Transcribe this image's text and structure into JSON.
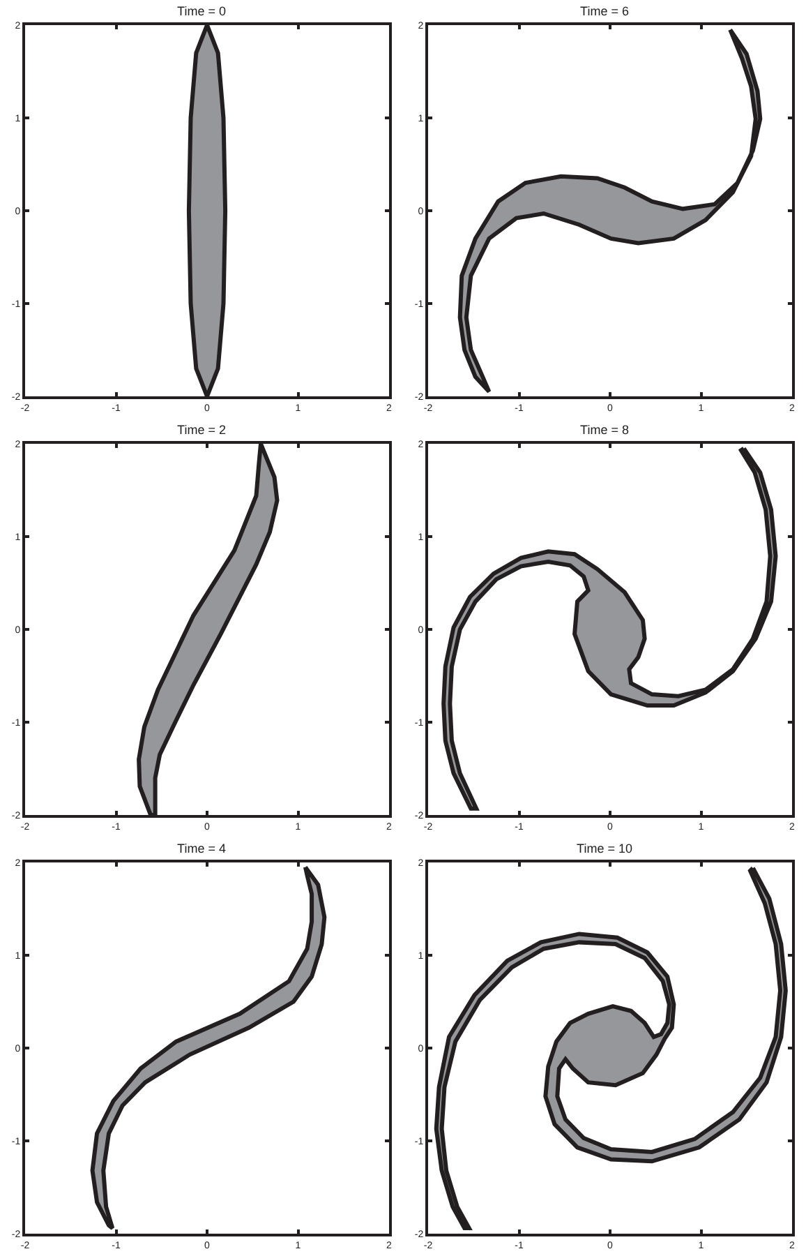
{
  "chart_data": [
    {
      "type": "area",
      "title": "Time = 0",
      "xlim": [
        -2,
        2
      ],
      "ylim": [
        -2,
        2
      ],
      "xticks": [
        -2,
        -1,
        0,
        1,
        2
      ],
      "yticks": [
        -2,
        -1,
        0,
        1,
        2
      ],
      "series": [
        {
          "color": "#96979b",
          "x": [
            0,
            0.12,
            0.18,
            0.2,
            0.18,
            0.12,
            0,
            -0.12,
            -0.18,
            -0.2,
            -0.18,
            -0.12
          ],
          "values": [
            2,
            1.7,
            1,
            0,
            -1,
            -1.7,
            -2,
            -1.7,
            -1,
            0,
            1,
            1.7
          ]
        }
      ]
    },
    {
      "type": "area",
      "title": "Time = 6",
      "xlim": [
        -2,
        2
      ],
      "ylim": [
        -2,
        2
      ],
      "xticks": [
        -2,
        -1,
        0,
        1,
        2
      ],
      "yticks": [
        -2,
        -1,
        0,
        1,
        2
      ],
      "series": [
        {
          "color": "#96979b",
          "x": [
            1.32,
            1.5,
            1.62,
            1.65,
            1.57,
            1.4,
            1.15,
            0.8,
            0.46,
            0.16,
            -0.14,
            -0.54,
            -0.93,
            -1.23,
            -1.48,
            -1.63,
            -1.65,
            -1.6,
            -1.48,
            -1.33,
            -1.4,
            -1.53,
            -1.58,
            -1.53,
            -1.33,
            -1.03,
            -0.73,
            -0.34,
            0.01,
            0.31,
            0.7,
            1.05,
            1.35,
            1.55,
            1.6,
            1.55,
            1.45
          ],
          "values": [
            1.95,
            1.69,
            1.29,
            0.99,
            0.65,
            0.3,
            0.07,
            0.02,
            0.1,
            0.25,
            0.35,
            0.37,
            0.3,
            0.1,
            -0.3,
            -0.7,
            -1.15,
            -1.5,
            -1.79,
            -1.95,
            -1.79,
            -1.5,
            -1.15,
            -0.7,
            -0.3,
            -0.08,
            -0.03,
            -0.15,
            -0.3,
            -0.35,
            -0.3,
            -0.1,
            0.2,
            0.59,
            0.99,
            1.34,
            1.64
          ]
        }
      ]
    },
    {
      "type": "area",
      "title": "Time = 2",
      "xlim": [
        -2,
        2
      ],
      "ylim": [
        -2,
        2
      ],
      "xticks": [
        -2,
        -1,
        0,
        1,
        2
      ],
      "yticks": [
        -2,
        -1,
        0,
        1,
        2
      ],
      "series": [
        {
          "color": "#96979b",
          "x": [
            0.59,
            0.74,
            0.77,
            0.69,
            0.54,
            0.15,
            -0.15,
            -0.35,
            -0.52,
            -0.57,
            -0.57,
            -0.62,
            -0.74,
            -0.75,
            -0.69,
            -0.54,
            -0.15,
            0.3,
            0.54,
            0.57
          ],
          "values": [
            2,
            1.64,
            1.39,
            1.05,
            0.7,
            -0.05,
            -0.6,
            -1,
            -1.35,
            -1.6,
            -2,
            -2,
            -1.69,
            -1.4,
            -1.05,
            -0.65,
            0.15,
            0.85,
            1.44,
            1.79
          ]
        }
      ]
    },
    {
      "type": "area",
      "title": "Time = 8",
      "xlim": [
        -2,
        2
      ],
      "ylim": [
        -2,
        2
      ],
      "xticks": [
        -2,
        -1,
        0,
        1,
        2
      ],
      "yticks": [
        -2,
        -1,
        0,
        1,
        2
      ],
      "series": [
        {
          "color": "#96979b",
          "x": [
            1.47,
            1.65,
            1.77,
            1.82,
            1.77,
            1.6,
            1.35,
            1.05,
            0.7,
            0.41,
            0.01,
            -0.24,
            -0.39,
            -0.36,
            -0.24,
            -0.29,
            -0.44,
            -0.68,
            -0.98,
            -1.25,
            -1.48,
            -1.65,
            -1.74,
            -1.76,
            -1.74,
            -1.65,
            -1.47,
            -1.53,
            -1.72,
            -1.81,
            -1.83,
            -1.81,
            -1.72,
            -1.54,
            -1.28,
            -0.98,
            -0.68,
            -0.39,
            -0.14,
            0.16,
            0.36,
            0.38,
            0.31,
            0.21,
            0.23,
            0.46,
            0.75,
            1.05,
            1.35,
            1.57,
            1.72,
            1.76,
            1.71,
            1.59,
            1.44
          ],
          "values": [
            1.95,
            1.69,
            1.29,
            0.79,
            0.3,
            -0.1,
            -0.45,
            -0.68,
            -0.82,
            -0.82,
            -0.7,
            -0.45,
            -0.05,
            0.3,
            0.42,
            0.57,
            0.69,
            0.73,
            0.68,
            0.54,
            0.3,
            0,
            -0.4,
            -0.8,
            -1.2,
            -1.55,
            -1.93,
            -1.93,
            -1.55,
            -1.2,
            -0.8,
            -0.4,
            0.02,
            0.35,
            0.6,
            0.77,
            0.84,
            0.81,
            0.65,
            0.4,
            0.1,
            -0.1,
            -0.3,
            -0.43,
            -0.58,
            -0.7,
            -0.72,
            -0.65,
            -0.43,
            -0.1,
            0.3,
            0.79,
            1.29,
            1.69,
            1.93
          ]
        }
      ]
    },
    {
      "type": "area",
      "title": "Time = 4",
      "xlim": [
        -2,
        2
      ],
      "ylim": [
        -2,
        2
      ],
      "xticks": [
        -2,
        -1,
        0,
        1,
        2
      ],
      "yticks": [
        -2,
        -1,
        0,
        1,
        2
      ],
      "series": [
        {
          "color": "#96979b",
          "x": [
            1.08,
            1.22,
            1.29,
            1.26,
            1.15,
            0.95,
            0.46,
            -0.19,
            -0.68,
            -0.93,
            -1.08,
            -1.14,
            -1.11,
            -1.04,
            -1.08,
            -1.21,
            -1.26,
            -1.21,
            -1.03,
            -0.73,
            -0.34,
            0.36,
            0.9,
            1.1,
            1.15,
            1.15,
            1.1
          ],
          "values": [
            1.95,
            1.76,
            1.41,
            1.12,
            0.77,
            0.5,
            0.22,
            -0.07,
            -0.37,
            -0.62,
            -0.92,
            -1.32,
            -1.71,
            -1.94,
            -1.91,
            -1.66,
            -1.32,
            -0.92,
            -0.57,
            -0.22,
            0.07,
            0.37,
            0.72,
            1.07,
            1.36,
            1.66,
            1.86
          ]
        }
      ]
    },
    {
      "type": "area",
      "title": "Time = 10",
      "xlim": [
        -2,
        2
      ],
      "ylim": [
        -2,
        2
      ],
      "xticks": [
        -2,
        -1,
        0,
        1,
        2
      ],
      "yticks": [
        -2,
        -1,
        0,
        1,
        2
      ],
      "series": [
        {
          "color": "#96979b",
          "x": [
            1.57,
            1.75,
            1.88,
            1.93,
            1.88,
            1.72,
            1.42,
            0.98,
            0.46,
            0.01,
            -0.36,
            -0.61,
            -0.71,
            -0.68,
            -0.59,
            -0.44,
            -0.24,
            0.03,
            0.23,
            0.38,
            0.48,
            0.56,
            0.63,
            0.65,
            0.58,
            0.38,
            0.06,
            -0.34,
            -0.73,
            -1.08,
            -1.43,
            -1.7,
            -1.82,
            -1.85,
            -1.8,
            -1.68,
            -1.55,
            -1.6,
            -1.73,
            -1.85,
            -1.91,
            -1.88,
            -1.77,
            -1.49,
            -1.13,
            -0.76,
            -0.34,
            0.08,
            0.41,
            0.63,
            0.7,
            0.68,
            0.6,
            0.51,
            0.36,
            0.06,
            -0.24,
            -0.41,
            -0.49,
            -0.56,
            -0.58,
            -0.49,
            -0.29,
            0.01,
            0.46,
            0.93,
            1.35,
            1.65,
            1.82,
            1.87,
            1.82,
            1.7,
            1.54
          ],
          "values": [
            1.94,
            1.61,
            1.12,
            0.62,
            0.12,
            -0.37,
            -0.77,
            -1.07,
            -1.22,
            -1.2,
            -1.07,
            -0.82,
            -0.52,
            -0.2,
            0.07,
            0.27,
            0.37,
            0.45,
            0.4,
            0.27,
            0.12,
            0.15,
            0.27,
            0.47,
            0.72,
            0.97,
            1.12,
            1.14,
            1.07,
            0.87,
            0.52,
            0.07,
            -0.42,
            -0.87,
            -1.32,
            -1.71,
            -1.94,
            -1.94,
            -1.71,
            -1.32,
            -0.87,
            -0.42,
            0.12,
            0.57,
            0.94,
            1.14,
            1.23,
            1.19,
            1.03,
            0.77,
            0.47,
            0.22,
            0.1,
            -0.07,
            -0.27,
            -0.4,
            -0.37,
            -0.22,
            -0.12,
            -0.22,
            -0.52,
            -0.77,
            -0.97,
            -1.09,
            -1.12,
            -0.98,
            -0.69,
            -0.32,
            0.12,
            0.62,
            1.12,
            1.56,
            1.91
          ]
        }
      ]
    }
  ]
}
